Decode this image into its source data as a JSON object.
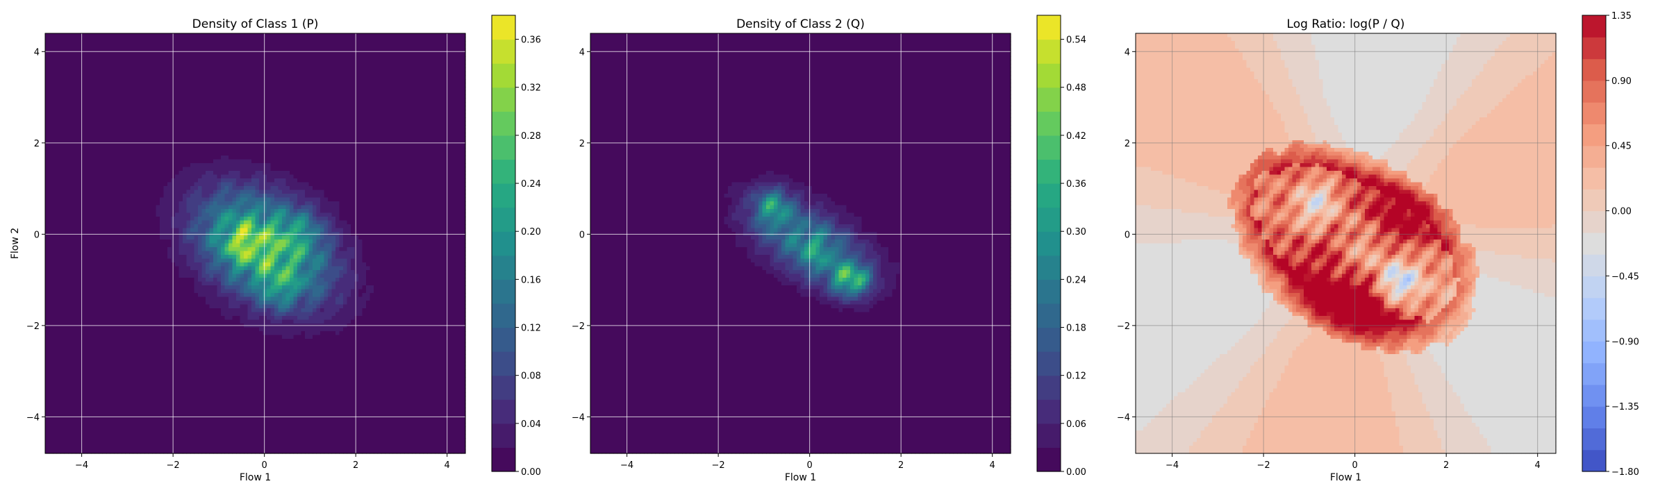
{
  "chart_data": [
    {
      "type": "heatmap",
      "title": "Density of Class 1 (P)",
      "xlabel": "Flow 1",
      "ylabel": "Flow 2",
      "xlim": [
        -4.8,
        4.4
      ],
      "ylim": [
        -4.8,
        4.4
      ],
      "xticks": [
        "−4",
        "−2",
        "0",
        "2",
        "4"
      ],
      "yticks": [
        "−4",
        "−2",
        "0",
        "2",
        "4"
      ],
      "colormap": "viridis",
      "colorbar_range": [
        0.0,
        0.38
      ],
      "colorbar_ticks": [
        "0.00",
        "0.04",
        "0.08",
        "0.12",
        "0.16",
        "0.20",
        "0.24",
        "0.28",
        "0.32",
        "0.36"
      ],
      "grid": true,
      "peak_x": -0.5,
      "peak_y": -0.2,
      "peak_value": 0.37
    },
    {
      "type": "heatmap",
      "title": "Density of Class 2 (Q)",
      "xlabel": "Flow 1",
      "ylabel": "",
      "xlim": [
        -4.8,
        4.4
      ],
      "ylim": [
        -4.8,
        4.4
      ],
      "xticks": [
        "−4",
        "−2",
        "0",
        "2",
        "4"
      ],
      "yticks": [
        "−4",
        "−2",
        "0",
        "2",
        "4"
      ],
      "colormap": "viridis",
      "colorbar_range": [
        0.0,
        0.57
      ],
      "colorbar_ticks": [
        "0.00",
        "0.06",
        "0.12",
        "0.18",
        "0.24",
        "0.30",
        "0.36",
        "0.42",
        "0.48",
        "0.54"
      ],
      "grid": true,
      "peak_x": 0.9,
      "peak_y": -1.0,
      "peak_value": 0.56
    },
    {
      "type": "heatmap",
      "title": "Log Ratio: log(P / Q)",
      "xlabel": "Flow 1",
      "ylabel": "",
      "xlim": [
        -4.8,
        4.4
      ],
      "ylim": [
        -4.8,
        4.4
      ],
      "xticks": [
        "−4",
        "−2",
        "0",
        "2",
        "4"
      ],
      "yticks": [
        "−4",
        "−2",
        "0",
        "2",
        "4"
      ],
      "colormap": "coolwarm",
      "colorbar_range": [
        -1.8,
        1.35
      ],
      "colorbar_ticks": [
        "−1.80",
        "−1.35",
        "−0.90",
        "−0.45",
        "0.00",
        "0.45",
        "0.90",
        "1.35"
      ],
      "grid": true
    }
  ]
}
